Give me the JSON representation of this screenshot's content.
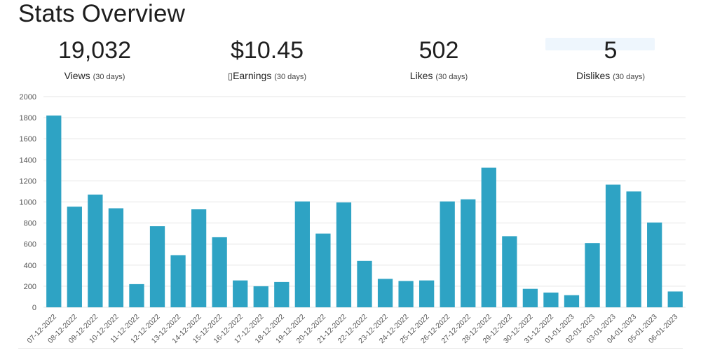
{
  "page": {
    "title": "Stats Overview"
  },
  "stats": [
    {
      "value": "19,032",
      "glyph": "",
      "label": "Views",
      "period": "(30 days)"
    },
    {
      "value": "$10.45",
      "glyph": "▯",
      "label": "Earnings",
      "period": "(30 days)"
    },
    {
      "value": "502",
      "glyph": "",
      "label": "Likes",
      "period": "(30 days)"
    },
    {
      "value": "5",
      "glyph": "",
      "label": "Dislikes",
      "period": "(30 days)"
    }
  ],
  "colors": {
    "bar": "#2ea3c4",
    "grid": "#e5e5e5",
    "axis_text": "#555555"
  },
  "chart_data": {
    "type": "bar",
    "title": "",
    "xlabel": "",
    "ylabel": "",
    "ylim": [
      0,
      2000
    ],
    "yticks": [
      0,
      200,
      400,
      600,
      800,
      1000,
      1200,
      1400,
      1600,
      1800,
      2000
    ],
    "grid": true,
    "categories": [
      "07-12-2022",
      "08-12-2022",
      "09-12-2022",
      "10-12-2022",
      "11-12-2022",
      "12-12-2022",
      "13-12-2022",
      "14-12-2022",
      "15-12-2022",
      "16-12-2022",
      "17-12-2022",
      "18-12-2022",
      "19-12-2022",
      "20-12-2022",
      "21-12-2022",
      "22-12-2022",
      "23-12-2022",
      "24-12-2022",
      "25-12-2022",
      "26-12-2022",
      "27-12-2022",
      "28-12-2022",
      "29-12-2022",
      "30-12-2022",
      "31-12-2022",
      "01-01-2023",
      "02-01-2023",
      "03-01-2023",
      "04-01-2023",
      "05-01-2023",
      "06-01-2023"
    ],
    "values": [
      1820,
      955,
      1070,
      940,
      220,
      770,
      495,
      930,
      665,
      255,
      200,
      240,
      1005,
      700,
      995,
      440,
      270,
      250,
      255,
      1005,
      1025,
      1325,
      675,
      175,
      140,
      115,
      610,
      1165,
      1100,
      805,
      150
    ]
  }
}
